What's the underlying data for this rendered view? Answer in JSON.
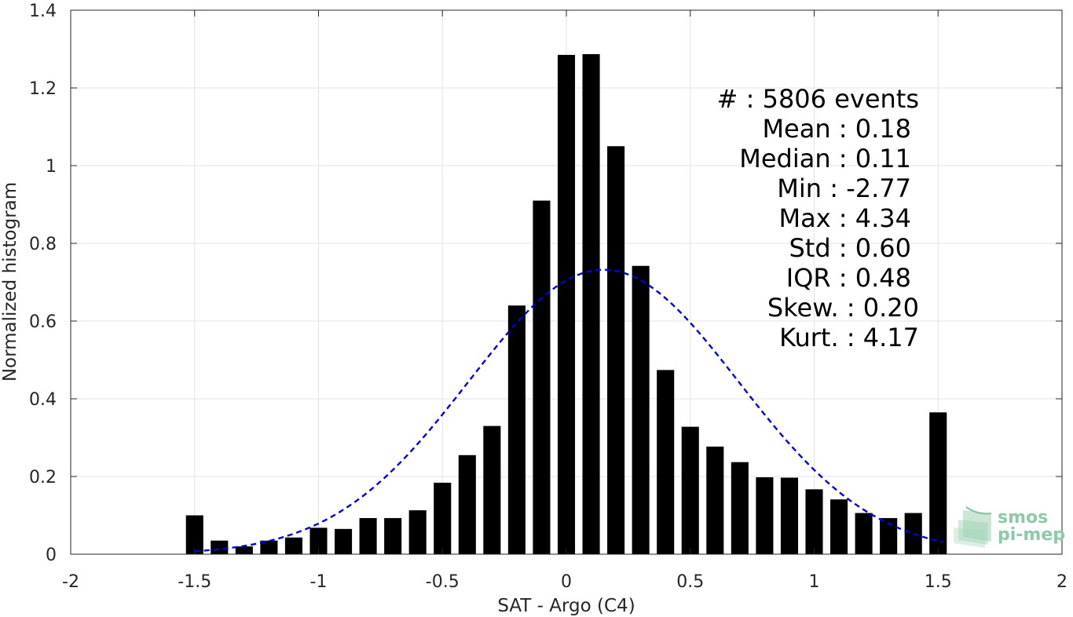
{
  "chart_data": {
    "type": "bar",
    "xlabel": "SAT - Argo (C4)",
    "ylabel": "Normalized histogram",
    "xlim": [
      -2,
      2
    ],
    "ylim": [
      0,
      1.4
    ],
    "xticks": [
      -2,
      -1.5,
      -1,
      -0.5,
      0,
      0.5,
      1,
      1.5,
      2
    ],
    "xtick_labels": [
      "-2",
      "-1.5",
      "-1",
      "-0.5",
      "0",
      "0.5",
      "1",
      "1.5",
      "2"
    ],
    "yticks": [
      0,
      0.2,
      0.4,
      0.6,
      0.8,
      1,
      1.2,
      1.4
    ],
    "ytick_labels": [
      "0",
      "0.2",
      "0.4",
      "0.6",
      "0.8",
      "1",
      "1.2",
      "1.4"
    ],
    "grid": true,
    "bar_color": "#000000",
    "bins": [
      -1.5,
      -1.4,
      -1.3,
      -1.2,
      -1.1,
      -1.0,
      -0.9,
      -0.8,
      -0.7,
      -0.6,
      -0.5,
      -0.4,
      -0.3,
      -0.2,
      -0.1,
      0.0,
      0.1,
      0.2,
      0.3,
      0.4,
      0.5,
      0.6,
      0.7,
      0.8,
      0.9,
      1.0,
      1.1,
      1.2,
      1.3,
      1.4,
      1.5
    ],
    "values": [
      0.1,
      0.035,
      0.02,
      0.035,
      0.043,
      0.068,
      0.065,
      0.093,
      0.093,
      0.113,
      0.184,
      0.255,
      0.33,
      0.64,
      0.91,
      1.285,
      1.287,
      1.05,
      0.742,
      0.474,
      0.328,
      0.277,
      0.237,
      0.198,
      0.197,
      0.167,
      0.141,
      0.106,
      0.093,
      0.106,
      0.365
    ],
    "fit": {
      "type": "gaussian",
      "color": "#0000e6",
      "style": "dashed",
      "mean": 0.15,
      "std": 0.545,
      "x_range": [
        -1.5,
        1.52
      ]
    },
    "stats": [
      {
        "label": "#  : 5806 events"
      },
      {
        "label": "Mean : 0.18"
      },
      {
        "label": "Median : 0.11"
      },
      {
        "label": "Min : -2.77"
      },
      {
        "label": "Max : 4.34"
      },
      {
        "label": "Std : 0.60"
      },
      {
        "label": "IQR : 0.48"
      },
      {
        "label": "Skew. : 0.20"
      },
      {
        "label": "Kurt. : 4.17"
      }
    ]
  },
  "logo": {
    "line1": "smos",
    "line2": "pi-mep",
    "color": "#8ccaa8"
  }
}
